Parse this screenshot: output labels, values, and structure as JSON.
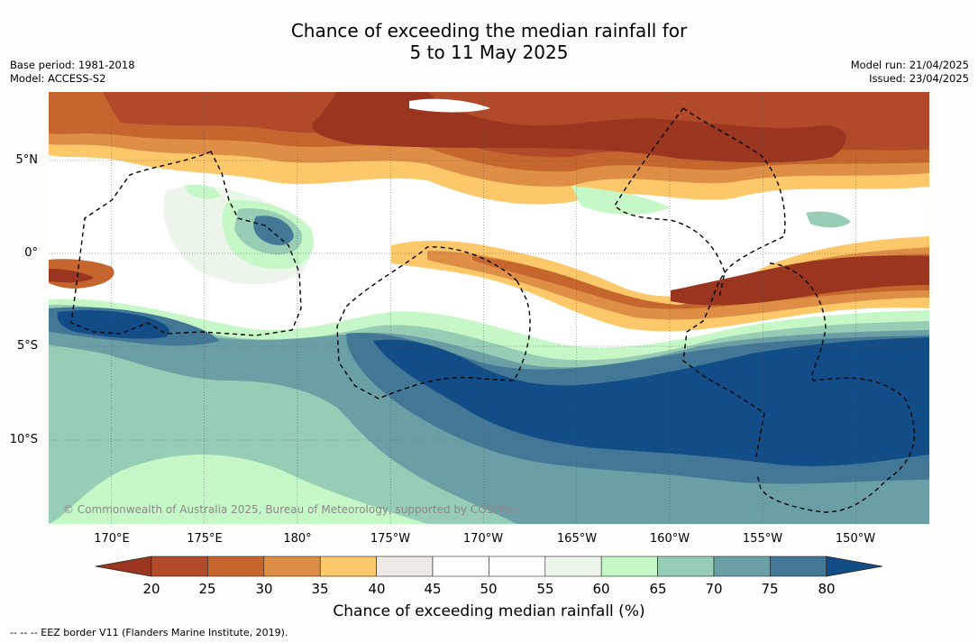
{
  "title": {
    "line1": "Chance of exceeding the median rainfall for",
    "line2": "5 to 11 May 2025"
  },
  "meta": {
    "base_period": "Base period: 1981-2018",
    "model": "Model: ACCESS-S2",
    "model_run": "Model run: 21/04/2025",
    "issued": "Issued: 23/04/2025"
  },
  "map": {
    "lat_labels": [
      "5°N",
      "0°",
      "5°S",
      "10°S"
    ],
    "lon_labels": [
      "170°E",
      "175°E",
      "180°",
      "175°W",
      "170°W",
      "165°W",
      "160°W",
      "155°W",
      "150°W"
    ],
    "credit": "© Commonwealth of Australia 2025, Bureau of Meteorology, supported by COSPPac"
  },
  "colorbar": {
    "ticks": [
      "20",
      "25",
      "30",
      "35",
      "40",
      "45",
      "50",
      "55",
      "60",
      "65",
      "70",
      "75",
      "80"
    ],
    "colors": [
      "#9a3620",
      "#b04a2a",
      "#c4662e",
      "#de8f45",
      "#fcc86a",
      "#efe9e6",
      "#ffffff",
      "#ffffff",
      "#ecf5ea",
      "#c6f7c6",
      "#96cdb4",
      "#6b9fa6",
      "#427896",
      "#134d88"
    ],
    "title": "Chance of exceeding median rainfall (%)"
  },
  "footnote": "--  --  -- EEZ border V11 (Flanders Marine Institute, 2019)."
}
